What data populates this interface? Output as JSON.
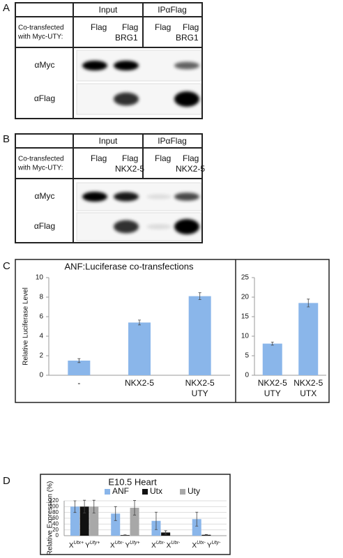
{
  "blots": [
    {
      "label": "A",
      "header": [
        "Input",
        "IPαFlag"
      ],
      "row_label": [
        "Co-transfected",
        "with Myc-UTY:"
      ],
      "lanes": [
        [
          "Flag"
        ],
        [
          "Flag",
          "BRG1"
        ],
        [
          "Flag"
        ],
        [
          "Flag",
          "BRG1"
        ]
      ],
      "antibodies": [
        "αMyc",
        "αFlag"
      ]
    },
    {
      "label": "B",
      "header": [
        "Input",
        "IPαFlag"
      ],
      "row_label": [
        "Co-transfected",
        "with Myc-UTY:"
      ],
      "lanes": [
        [
          "Flag"
        ],
        [
          "Flag",
          "NKX2-5"
        ],
        [
          "Flag"
        ],
        [
          "Flag",
          "NKX2-5"
        ]
      ],
      "antibodies": [
        "αMyc",
        "αFlag"
      ]
    }
  ],
  "chart_data": [
    {
      "type": "bar",
      "panel": "C",
      "title": "ANF:Luciferase co-transfections",
      "ylabel": "Relative Luciferase Level",
      "categories": [
        [
          "-"
        ],
        [
          "NKX2-5"
        ],
        [
          "NKX2-5",
          "UTY"
        ]
      ],
      "series": [
        {
          "color": "#8ab6ea",
          "values": [
            1.5,
            5.4,
            8.1
          ],
          "errors": [
            0.2,
            0.25,
            0.35
          ]
        }
      ],
      "ylim": [
        0,
        10
      ],
      "yticks": [
        0,
        2,
        4,
        6,
        8,
        10
      ],
      "grid": false
    },
    {
      "type": "bar",
      "categories": [
        [
          "NKX2-5",
          "UTY"
        ],
        [
          "NKX2-5",
          "UTX"
        ]
      ],
      "series": [
        {
          "color": "#8ab6ea",
          "values": [
            8.1,
            18.5
          ],
          "errors": [
            0.4,
            1.0
          ]
        }
      ],
      "ylim": [
        0,
        25
      ],
      "yticks": [
        0,
        5,
        10,
        15,
        20,
        25
      ],
      "grid": false
    },
    {
      "type": "bar",
      "panel": "D",
      "title": "E10.5 Heart",
      "ylabel": "Relative Expression (%)",
      "categories": [
        [
          "X",
          "Utx+",
          "Y",
          "Uty+"
        ],
        [
          "X",
          "Utx-",
          "Y",
          "Uty+"
        ],
        [
          "X",
          "Utx-",
          "X",
          "Utx-"
        ],
        [
          "X",
          "Utx-",
          "Y",
          "Uty-"
        ]
      ],
      "series": [
        {
          "name": "ANF",
          "color": "#8ab6ea",
          "values": [
            100,
            76,
            51,
            57
          ],
          "errors": [
            20,
            24,
            30,
            24
          ]
        },
        {
          "name": "Utx",
          "color": "#111111",
          "values": [
            100,
            2,
            11,
            3
          ],
          "errors": [
            22,
            1,
            6,
            1
          ]
        },
        {
          "name": "Uty",
          "color": "#a8a8a8",
          "values": [
            100,
            96,
            null,
            null
          ],
          "errors": [
            22,
            25,
            null,
            null
          ]
        }
      ],
      "ylim": [
        0,
        120
      ],
      "yticks": [
        0,
        20,
        40,
        60,
        80,
        100,
        120
      ],
      "grid": true,
      "legend": "top"
    }
  ]
}
